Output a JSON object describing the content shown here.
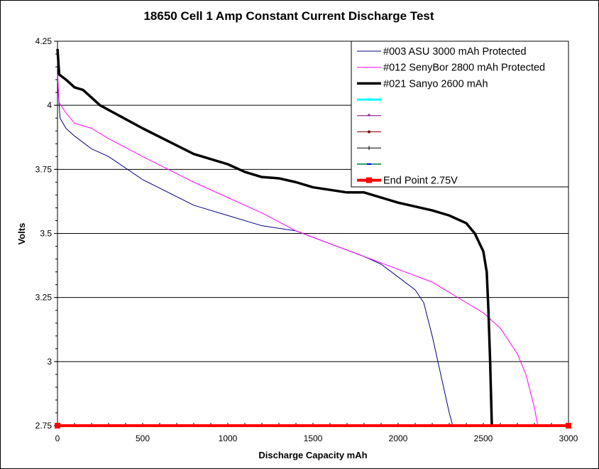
{
  "chart_data": {
    "type": "line",
    "title": "18650 Cell 1 Amp Constant Current Discharge Test",
    "xlabel": "Discharge Capacity mAh",
    "ylabel": "Volts",
    "xlim": [
      0,
      3000
    ],
    "ylim": [
      2.75,
      4.25
    ],
    "xticks": [
      "0",
      "500",
      "1000",
      "1500",
      "2000",
      "2500",
      "3000"
    ],
    "yticks": [
      "2.75",
      "3",
      "3.25",
      "3.5",
      "3.75",
      "4",
      "4.25"
    ],
    "grid": "horizontal major",
    "legend_position": "top-right",
    "series": [
      {
        "name": "#003 ASU 3000 mAh Protected",
        "color": "#000080",
        "x": [
          0,
          5,
          15,
          50,
          100,
          200,
          300,
          500,
          800,
          1000,
          1200,
          1400,
          1600,
          1800,
          1900,
          2000,
          2100,
          2150,
          2200,
          2250,
          2300,
          2320
        ],
        "y": [
          4.15,
          4.05,
          3.95,
          3.91,
          3.88,
          3.83,
          3.8,
          3.71,
          3.61,
          3.57,
          3.53,
          3.51,
          3.46,
          3.41,
          3.38,
          3.33,
          3.28,
          3.23,
          3.1,
          2.95,
          2.8,
          2.75
        ]
      },
      {
        "name": "#012 SenyBor 2800 mAh Protected",
        "color": "#ff00ff",
        "x": [
          0,
          10,
          50,
          100,
          200,
          300,
          500,
          800,
          1000,
          1200,
          1400,
          1600,
          1800,
          2000,
          2200,
          2400,
          2500,
          2600,
          2700,
          2750,
          2800,
          2820
        ],
        "y": [
          4.12,
          4.01,
          3.97,
          3.93,
          3.91,
          3.87,
          3.8,
          3.7,
          3.64,
          3.58,
          3.51,
          3.46,
          3.41,
          3.36,
          3.31,
          3.23,
          3.19,
          3.13,
          3.03,
          2.95,
          2.82,
          2.75
        ]
      },
      {
        "name": "#021 Sanyo 2600 mAh",
        "color": "#000000",
        "x": [
          0,
          10,
          50,
          100,
          150,
          250,
          500,
          800,
          1000,
          1100,
          1200,
          1300,
          1400,
          1500,
          1700,
          1800,
          1900,
          2000,
          2200,
          2300,
          2400,
          2450,
          2500,
          2520,
          2530,
          2540,
          2550
        ],
        "y": [
          4.22,
          4.12,
          4.1,
          4.07,
          4.06,
          4.0,
          3.91,
          3.81,
          3.77,
          3.74,
          3.72,
          3.715,
          3.7,
          3.68,
          3.66,
          3.66,
          3.64,
          3.62,
          3.59,
          3.57,
          3.54,
          3.5,
          3.43,
          3.35,
          3.2,
          3.0,
          2.75
        ]
      },
      {
        "name": "",
        "color": "#00ffff",
        "x": [],
        "y": []
      },
      {
        "name": "",
        "color": "#800080",
        "x": [],
        "y": []
      },
      {
        "name": "",
        "color": "#800000",
        "x": [],
        "y": []
      },
      {
        "name": "",
        "color": "#000000",
        "x": [],
        "y": []
      },
      {
        "name": "",
        "color": "#339966",
        "x": [],
        "y": []
      },
      {
        "name": "End Point 2.75V",
        "color": "#ff0000",
        "x": [
          0,
          3000
        ],
        "y": [
          2.75,
          2.75
        ]
      }
    ]
  }
}
